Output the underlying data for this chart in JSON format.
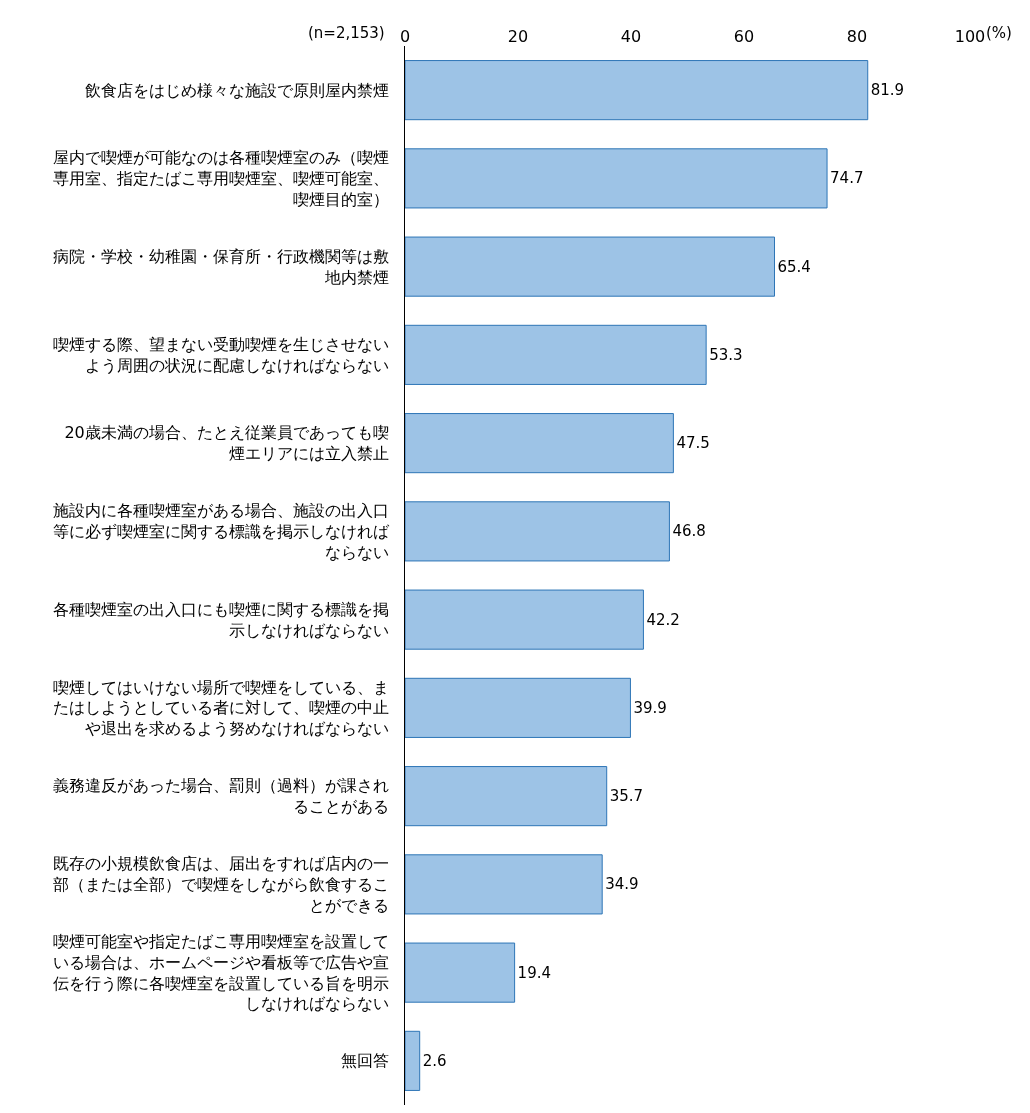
{
  "chart_data": {
    "type": "bar",
    "orientation": "horizontal",
    "categories": [
      "飲食店をはじめ様々な施設で原則屋内禁煙",
      "屋内で喫煙が可能なのは各種喫煙室のみ（喫煙専用室、指定たばこ専用喫煙室、喫煙可能室、喫煙目的室）",
      "病院・学校・幼稚園・保育所・行政機関等は敷地内禁煙",
      "喫煙する際、望まない受動喫煙を生じさせないよう周囲の状況に配慮しなければならない",
      "20歳未満の場合、たとえ従業員であっても喫煙エリアには立入禁止",
      "施設内に各種喫煙室がある場合、施設の出入口等に必ず喫煙室に関する標識を掲示しなければならない",
      "各種喫煙室の出入口にも喫煙に関する標識を掲示しなければならない",
      "喫煙してはいけない場所で喫煙をしている、またはしようとしている者に対して、喫煙の中止や退出を求めるよう努めなければならない",
      "義務違反があった場合、罰則（過料）が課されることがある",
      "既存の小規模飲食店は、届出をすれば店内の一部（または全部）で喫煙をしながら飲食することができる",
      "喫煙可能室や指定たばこ専用喫煙室を設置している場合は、ホームページや看板等で広告や宣伝を行う際に各喫煙室を設置している旨を明示しなければならない",
      "無回答"
    ],
    "values": [
      81.9,
      74.7,
      65.4,
      53.3,
      47.5,
      46.8,
      42.2,
      39.9,
      35.7,
      34.9,
      19.4,
      2.6
    ],
    "color": "#9dc3e6",
    "xlim": [
      0,
      100
    ],
    "xticks": [
      0,
      20,
      40,
      60,
      80,
      100
    ],
    "xlabel": "(%)",
    "annotations": [
      "(n=2,153)"
    ],
    "data_labels": true,
    "grid": false,
    "legend": false
  }
}
